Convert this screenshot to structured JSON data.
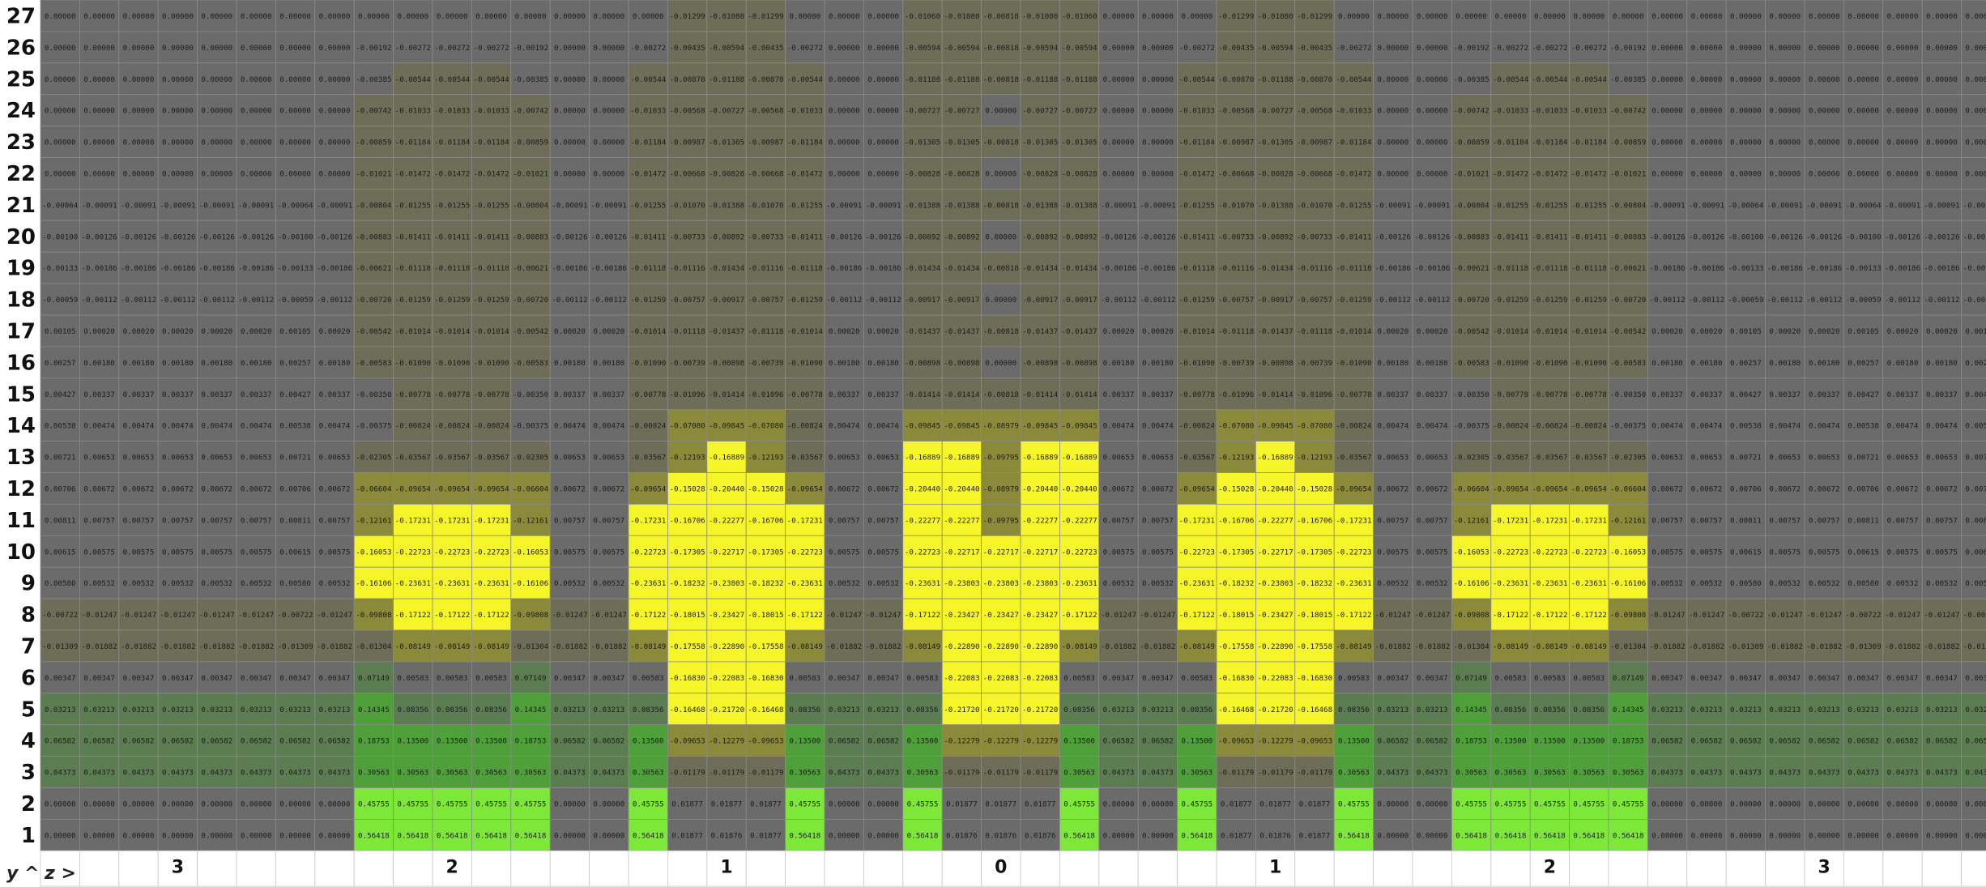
{
  "chart_data": {
    "type": "heatmap",
    "corner_y_label": "y ^",
    "corner_z_label": "z >",
    "row_labels": [
      "27",
      "26",
      "25",
      "24",
      "23",
      "22",
      "21",
      "20",
      "19",
      "18",
      "17",
      "16",
      "15",
      "14",
      "13",
      "12",
      "11",
      "10",
      "9",
      "8",
      "7",
      "6",
      "5",
      "4",
      "3",
      "2",
      "1"
    ],
    "z_labels": [
      "",
      "",
      "",
      "3",
      "",
      "",
      "",
      "",
      "",
      "",
      "2",
      "",
      "",
      "",
      "",
      "",
      "",
      "1",
      "",
      "",
      "",
      "",
      "",
      "",
      "0",
      "",
      "",
      "",
      "",
      "",
      "",
      "1",
      "",
      "",
      "",
      "",
      "",
      "",
      "2",
      "",
      "",
      "",
      "",
      "",
      "",
      "3",
      "",
      "",
      "",
      ""
    ],
    "colors": {
      "zero": "#6b6b6b",
      "negative_small": "#6e6e58",
      "negative_mid": "#8a8a3a",
      "negative_large": "#f5f52a",
      "positive_small": "#5c7c52",
      "positive_mid": "#4fa03a",
      "positive_large": "#7ee83a",
      "grid_line": "#8a8a8a",
      "header_bg": "#ffffff"
    },
    "blocks": {
      "A": [
        "0.00000",
        "0.00000",
        "0.00000",
        "0.00000",
        "0.00000",
        "0.00000",
        "-0.00064",
        "-0.00100",
        "-0.00133",
        "-0.00059",
        "0.00105",
        "0.00257",
        "0.00427",
        "0.00538",
        "0.00721",
        "0.00706",
        "0.00811",
        "0.00615",
        "0.00580",
        "-0.00722",
        "-0.01309",
        "0.00347",
        "0.03213",
        "0.06582",
        "0.04373",
        "0.00000",
        "0.00000"
      ],
      "B": [
        "0.00000",
        "0.00000",
        "0.00000",
        "0.00000",
        "0.00000",
        "0.00000",
        "-0.00091",
        "-0.00126",
        "-0.00186",
        "-0.00112",
        "0.00020",
        "0.00180",
        "0.00337",
        "0.00474",
        "0.00653",
        "0.00672",
        "0.00757",
        "0.00575",
        "0.00532",
        "-0.01247",
        "-0.01882",
        "0.00347",
        "0.03213",
        "0.06582",
        "0.04373",
        "0.00000",
        "0.00000"
      ],
      "C": [
        "0.00000",
        "-0.00192",
        "-0.00385",
        "-0.00742",
        "-0.00859",
        "-0.01021",
        "-0.00804",
        "-0.00883",
        "-0.00621",
        "-0.00720",
        "-0.00542",
        "-0.00583",
        "-0.00350",
        "-0.00375",
        "-0.02305",
        "-0.06604",
        "-0.12161",
        "-0.16053",
        "-0.16106",
        "-0.09808",
        "-0.01304",
        "0.07149",
        "0.14345",
        "0.18753",
        "0.30563",
        "0.45755",
        "0.56418"
      ],
      "D": [
        "0.00000",
        "-0.00272",
        "-0.00544",
        "-0.01033",
        "-0.01184",
        "-0.01472",
        "-0.01255",
        "-0.01411",
        "-0.01118",
        "-0.01259",
        "-0.01014",
        "-0.01090",
        "-0.00778",
        "-0.00824",
        "-0.03567",
        "-0.09654",
        "-0.17231",
        "-0.22723",
        "-0.23631",
        "-0.17122",
        "-0.08149",
        "0.00583",
        "0.08356",
        "0.13500",
        "0.30563",
        "0.45755",
        "0.56418"
      ],
      "E": [
        "-0.01299",
        "-0.00435",
        "-0.00870",
        "-0.00568",
        "-0.00987",
        "-0.00668",
        "-0.01070",
        "-0.00733",
        "-0.01116",
        "-0.00757",
        "-0.01118",
        "-0.00739",
        "-0.01096",
        "-0.07080",
        "-0.12193",
        "-0.15028",
        "-0.16706",
        "-0.17305",
        "-0.18232",
        "-0.18015",
        "-0.17558",
        "-0.16830",
        "-0.16468",
        "-0.09653",
        "-0.01179",
        "0.01877",
        "0.01877"
      ],
      "F": [
        "-0.01080",
        "-0.00594",
        "-0.01188",
        "-0.00727",
        "-0.01305",
        "-0.00828",
        "-0.01388",
        "-0.00892",
        "-0.01434",
        "-0.00917",
        "-0.01437",
        "-0.00898",
        "-0.01414",
        "-0.09845",
        "-0.16889",
        "-0.20440",
        "-0.22277",
        "-0.22717",
        "-0.23803",
        "-0.23427",
        "-0.22890",
        "-0.22083",
        "-0.21720",
        "-0.12279",
        "-0.01179",
        "0.01877",
        "0.01876"
      ],
      "G": [
        "-0.01060",
        "-0.00594",
        "-0.01188",
        "-0.00727",
        "-0.01305",
        "-0.00828",
        "-0.01388",
        "-0.00892",
        "-0.01434",
        "-0.00917",
        "-0.01437",
        "-0.00898",
        "-0.01414",
        "-0.09845",
        "-0.16889",
        "-0.20440",
        "-0.22277",
        "-0.22723",
        "-0.23631",
        "-0.17122",
        "-0.08149",
        "0.00583",
        "0.08356",
        "0.13500",
        "0.30563",
        "0.45755",
        "0.56418"
      ],
      "H": [
        "-0.00818",
        "-0.00818",
        "-0.00818",
        "0.00000",
        "-0.00818",
        "0.00000",
        "-0.00818",
        "0.00000",
        "-0.00818",
        "0.00000",
        "-0.00818",
        "0.00000",
        "-0.00818",
        "-0.08979",
        "-0.09795",
        "-0.08979",
        "-0.09795",
        "-0.22717",
        "-0.23803",
        "-0.23427",
        "-0.22890",
        "-0.22083",
        "-0.21720",
        "-0.12279",
        "-0.01179",
        "0.01877",
        "0.01876"
      ],
      "I": [
        "-0.01060",
        "-0.00594",
        "-0.01188",
        "-0.00727",
        "-0.01305",
        "-0.00828",
        "-0.01388",
        "-0.00892",
        "-0.01434",
        "-0.00917",
        "-0.01437",
        "-0.00898",
        "-0.01414",
        "-0.09845",
        "-0.16889",
        "-0.20440",
        "-0.22277",
        "-0.08979",
        "-0.08979",
        "-0.08979",
        "-0.08979",
        "-0.08979",
        "-0.08979",
        "0.00000",
        "0.00000",
        "0.00000",
        "0.00000"
      ],
      "J": [
        "-0.01299",
        "-0.00435",
        "-0.00870",
        "-0.00568",
        "-0.00987",
        "-0.00668",
        "-0.01070",
        "-0.00733",
        "-0.01116",
        "-0.00757",
        "-0.01118",
        "-0.00739",
        "-0.01096",
        "-0.07080",
        "-0.12193",
        "-0.15028",
        "-0.16706",
        "-0.17305",
        "-0.18232",
        "-0.18015",
        "-0.17558",
        "-0.16830",
        "-0.16468",
        "-0.09653",
        "-0.01179",
        "0.01877",
        "0.01877"
      ],
      "P": [
        "0.00000",
        "0.00000",
        "0.00000",
        "0.00000",
        "0.00000",
        "0.00000",
        "0.00000",
        "0.00000",
        "0.00000",
        "0.00000",
        "0.00000",
        "0.00000",
        "0.00000",
        "0.00000",
        "0.00000",
        "0.00000",
        "0.00000",
        "0.00000",
        "0.00000",
        "0.00000",
        "0.00000",
        "0.00000",
        "0.00000",
        "0.00000",
        "0.00000",
        "0.00000",
        "0.00000"
      ]
    },
    "column_blocks": [
      "A",
      "B",
      "B",
      "B",
      "B",
      "B",
      "A",
      "B",
      "C",
      "D",
      "D",
      "D",
      "C",
      "B",
      "B",
      "D",
      "E",
      "F",
      "E",
      "D",
      "B",
      "B",
      "G",
      "F",
      "H",
      "F",
      "G",
      "B",
      "B",
      "D",
      "J",
      "F",
      "J",
      "D",
      "B",
      "B",
      "C",
      "D",
      "D",
      "D",
      "C",
      "B",
      "B",
      "A",
      "B",
      "B",
      "A",
      "B",
      "B",
      "A"
    ]
  }
}
